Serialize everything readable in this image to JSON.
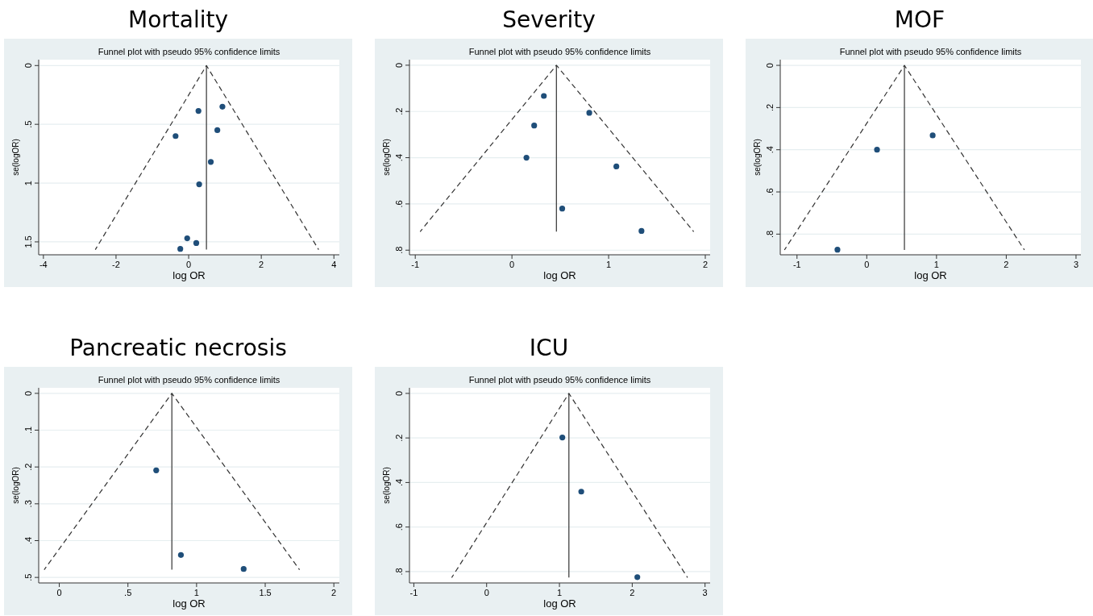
{
  "chart_data": [
    {
      "type": "scatter",
      "title": "Mortality",
      "subtitle": "Funnel plot with pseudo 95% confidence limits",
      "xlabel": "log OR",
      "ylabel": "se(logOR)",
      "xlim": [
        -4.13,
        4.15
      ],
      "ylim": [
        1.61,
        -0.05
      ],
      "xticks": [
        -4,
        -2,
        0,
        2,
        4
      ],
      "yticks": [
        0,
        {
          "value": 0.5,
          "label": ".5"
        },
        1,
        1.5
      ],
      "grid": "y",
      "series": [
        {
          "type": "scatter",
          "marker": "circle",
          "color": "#1f4e79",
          "x": [
            0.93,
            0.27,
            0.79,
            -0.36,
            0.61,
            0.29,
            -0.04,
            0.21,
            -0.23
          ],
          "values": [
            0.35,
            0.386,
            0.55,
            0.6,
            0.82,
            1.01,
            1.47,
            1.51,
            1.56
          ]
        },
        {
          "type": "line",
          "marker": "none",
          "line_style": "dashed",
          "color": "#333333",
          "x": [
            -2.57,
            0.49,
            3.58
          ],
          "values": [
            1.566,
            0,
            1.566
          ]
        },
        {
          "type": "line",
          "marker": "none",
          "line_style": "solid",
          "color": "#333333",
          "x": [
            0.49,
            0.49
          ],
          "values": [
            0,
            1.566
          ]
        }
      ]
    },
    {
      "type": "scatter",
      "title": "Severity",
      "subtitle": "Funnel plot with pseudo 95% confidence limits",
      "xlabel": "log OR",
      "ylabel": "se(logOR)",
      "xlim": [
        -1.06,
        2.05
      ],
      "ylim": [
        0.82,
        -0.024
      ],
      "xticks": [
        -1,
        0,
        1,
        2
      ],
      "yticks": [
        0,
        {
          "value": 0.2,
          "label": ".2"
        },
        {
          "value": 0.4,
          "label": ".4"
        },
        {
          "value": 0.6,
          "label": ".6"
        },
        {
          "value": 0.8,
          "label": ".8"
        }
      ],
      "grid": "y",
      "series": [
        {
          "type": "scatter",
          "marker": "circle",
          "color": "#1f4e79",
          "x": [
            0.33,
            0.8,
            0.23,
            0.15,
            1.08,
            0.52,
            1.34
          ],
          "values": [
            0.133,
            0.206,
            0.261,
            0.4,
            0.438,
            0.62,
            0.717
          ]
        },
        {
          "type": "line",
          "marker": "none",
          "line_style": "dashed",
          "color": "#333333",
          "x": [
            -0.95,
            0.46,
            1.88
          ],
          "values": [
            0.72,
            0,
            0.72
          ]
        },
        {
          "type": "line",
          "marker": "none",
          "line_style": "solid",
          "color": "#333333",
          "x": [
            0.46,
            0.46
          ],
          "values": [
            0,
            0.72
          ]
        }
      ]
    },
    {
      "type": "scatter",
      "title": "MOF",
      "subtitle": "Funnel plot with pseudo 95% confidence limits",
      "xlabel": "log OR",
      "ylabel": "se(logOR)",
      "xlim": [
        -1.24,
        3.07
      ],
      "ylim": [
        0.898,
        -0.027
      ],
      "xticks": [
        -1,
        0,
        1,
        2,
        3
      ],
      "yticks": [
        0,
        {
          "value": 0.2,
          "label": ".2"
        },
        {
          "value": 0.4,
          "label": ".4"
        },
        {
          "value": 0.6,
          "label": ".6"
        },
        {
          "value": 0.8,
          "label": ".8"
        }
      ],
      "grid": "y",
      "series": [
        {
          "type": "scatter",
          "marker": "circle",
          "color": "#1f4e79",
          "x": [
            0.945,
            0.147,
            -0.42
          ],
          "values": [
            0.332,
            0.4,
            0.874
          ]
        },
        {
          "type": "line",
          "marker": "none",
          "line_style": "dashed",
          "color": "#333333",
          "x": [
            -1.18,
            0.54,
            2.26
          ],
          "values": [
            0.875,
            0,
            0.875
          ]
        },
        {
          "type": "line",
          "marker": "none",
          "line_style": "solid",
          "color": "#333333",
          "x": [
            0.54,
            0.54
          ],
          "values": [
            0,
            0.875
          ]
        }
      ]
    },
    {
      "type": "scatter",
      "title": "Pancreatic necrosis",
      "subtitle": "Funnel plot with pseudo 95% confidence limits",
      "xlabel": "log OR",
      "ylabel": "se(logOR)",
      "xlim": [
        -0.15,
        2.04
      ],
      "ylim": [
        0.515,
        -0.015
      ],
      "xticks": [
        0,
        {
          "value": 0.5,
          "label": ".5"
        },
        1,
        1.5,
        2
      ],
      "yticks": [
        0,
        {
          "value": 0.1,
          "label": ".1"
        },
        {
          "value": 0.2,
          "label": ".2"
        },
        {
          "value": 0.3,
          "label": ".3"
        },
        {
          "value": 0.4,
          "label": ".4"
        },
        {
          "value": 0.5,
          "label": ".5"
        }
      ],
      "grid": "y",
      "series": [
        {
          "type": "scatter",
          "marker": "circle",
          "color": "#1f4e79",
          "x": [
            0.706,
            0.886,
            1.343
          ],
          "values": [
            0.209,
            0.439,
            0.477
          ]
        },
        {
          "type": "line",
          "marker": "none",
          "line_style": "dashed",
          "color": "#333333",
          "x": [
            -0.11,
            0.82,
            1.75
          ],
          "values": [
            0.479,
            0,
            0.479
          ]
        },
        {
          "type": "line",
          "marker": "none",
          "line_style": "solid",
          "color": "#333333",
          "x": [
            0.82,
            0.82
          ],
          "values": [
            0,
            0.479
          ]
        }
      ]
    },
    {
      "type": "scatter",
      "title": "ICU",
      "subtitle": "Funnel plot with pseudo 95% confidence limits",
      "xlabel": "log OR",
      "ylabel": "se(logOR)",
      "xlim": [
        -1.06,
        3.07
      ],
      "ylim": [
        0.851,
        -0.025
      ],
      "xticks": [
        -1,
        0,
        1,
        2,
        3
      ],
      "yticks": [
        0,
        {
          "value": 0.2,
          "label": ".2"
        },
        {
          "value": 0.4,
          "label": ".4"
        },
        {
          "value": 0.6,
          "label": ".6"
        },
        {
          "value": 0.8,
          "label": ".8"
        }
      ],
      "grid": "y",
      "series": [
        {
          "type": "scatter",
          "marker": "circle",
          "color": "#1f4e79",
          "x": [
            1.04,
            1.3,
            2.07
          ],
          "values": [
            0.198,
            0.441,
            0.825
          ]
        },
        {
          "type": "line",
          "marker": "none",
          "line_style": "dashed",
          "color": "#333333",
          "x": [
            -0.48,
            1.13,
            2.76
          ],
          "values": [
            0.827,
            0,
            0.827
          ]
        },
        {
          "type": "line",
          "marker": "none",
          "line_style": "solid",
          "color": "#333333",
          "x": [
            1.13,
            1.13
          ],
          "values": [
            0,
            0.827
          ]
        }
      ]
    }
  ]
}
